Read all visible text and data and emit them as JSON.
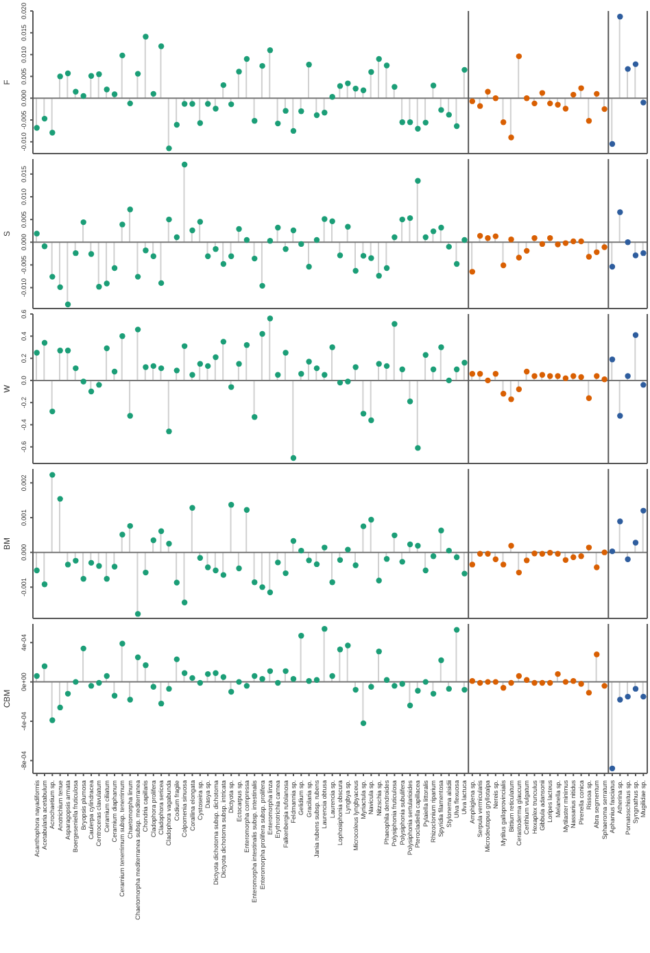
{
  "chart_data": [
    {
      "type": "lollipop",
      "ylabel": "F",
      "tick_labels": "y",
      "marker": "circle",
      "ylim": [
        -0.0127,
        0.02
      ],
      "yticks": [
        {
          "value": -0.01,
          "label": "-0.010"
        },
        {
          "value": -0.005,
          "label": "-0.005"
        },
        {
          "value": 0,
          "label": "0.000"
        },
        {
          "value": 0.005,
          "label": "0.005"
        },
        {
          "value": 0.01,
          "label": "0.010"
        },
        {
          "value": 0.015,
          "label": "0.015"
        },
        {
          "value": 0.02,
          "label": "0.020"
        }
      ],
      "series": [
        {
          "color": "#1b9e77",
          "values": [
            -0.0068,
            -0.0047,
            -0.0079,
            0.005,
            0.0057,
            0.0015,
            0.0005,
            0.0051,
            0.0055,
            0.002,
            0.0009,
            0.0098,
            -0.0012,
            0.0056,
            0.0141,
            0.001,
            0.0119,
            -0.0115,
            -0.0061,
            -0.0013,
            -0.0013,
            -0.0057,
            -0.0013,
            -0.0024,
            0.003,
            -0.0014,
            0.0061,
            0.009,
            -0.0052,
            0.0074,
            0.011,
            -0.0058,
            -0.0029,
            -0.0075,
            -0.003,
            0.0077,
            -0.0039,
            -0.0033,
            0.0003,
            0.0028,
            0.0034,
            0.0022,
            0.0018,
            0.006,
            0.009,
            0.0075,
            0.0026,
            -0.0055,
            -0.0055,
            -0.007,
            -0.0056,
            0.0029,
            -0.0027,
            -0.0038,
            -0.0064,
            0.0065,
            null,
            null,
            null,
            null,
            null,
            null,
            null,
            null,
            null,
            null,
            null,
            null,
            null,
            null,
            null,
            null,
            null,
            null,
            null,
            null,
            null,
            null,
            null
          ]
        },
        {
          "color": "#d95f02",
          "values": [
            null,
            null,
            null,
            null,
            null,
            null,
            null,
            null,
            null,
            null,
            null,
            null,
            null,
            null,
            null,
            null,
            null,
            null,
            null,
            null,
            null,
            null,
            null,
            null,
            null,
            null,
            null,
            null,
            null,
            null,
            null,
            null,
            null,
            null,
            null,
            null,
            null,
            null,
            null,
            null,
            null,
            null,
            null,
            null,
            null,
            null,
            null,
            null,
            null,
            null,
            null,
            null,
            null,
            null,
            null,
            null,
            -0.0007,
            -0.0018,
            0.0015,
            0,
            -0.0055,
            -0.009,
            0.0096,
            0,
            -0.0012,
            0.0012,
            -0.0012,
            -0.0015,
            -0.0024,
            0.0008,
            0.0023,
            -0.0052,
            0.001,
            -0.0025,
            null,
            null,
            null,
            null,
            null
          ]
        },
        {
          "color": "#2e5d9e",
          "values": [
            null,
            null,
            null,
            null,
            null,
            null,
            null,
            null,
            null,
            null,
            null,
            null,
            null,
            null,
            null,
            null,
            null,
            null,
            null,
            null,
            null,
            null,
            null,
            null,
            null,
            null,
            null,
            null,
            null,
            null,
            null,
            null,
            null,
            null,
            null,
            null,
            null,
            null,
            null,
            null,
            null,
            null,
            null,
            null,
            null,
            null,
            null,
            null,
            null,
            null,
            null,
            null,
            null,
            null,
            null,
            null,
            null,
            null,
            null,
            null,
            null,
            null,
            null,
            null,
            null,
            null,
            null,
            null,
            null,
            null,
            null,
            null,
            null,
            null,
            -0.0105,
            0.0187,
            0.0067,
            0.0078,
            -0.001
          ]
        }
      ]
    },
    {
      "type": "lollipop",
      "ylabel": "S",
      "tick_labels": "y",
      "marker": "circle",
      "ylim": [
        -0.0146,
        0.0183
      ],
      "yticks": [
        {
          "value": -0.01,
          "label": "-0.010"
        },
        {
          "value": -0.005,
          "label": "-0.005"
        },
        {
          "value": 0,
          "label": "0.000"
        },
        {
          "value": 0.005,
          "label": "0.005"
        },
        {
          "value": 0.01,
          "label": "0.010"
        },
        {
          "value": 0.015,
          "label": "0.015"
        }
      ],
      "series": [
        {
          "color": "#1b9e77",
          "values": [
            0.0019,
            -0.0009,
            -0.0076,
            -0.0099,
            -0.0137,
            -0.0024,
            0.0044,
            -0.0026,
            -0.0098,
            -0.0091,
            -0.0057,
            0.0039,
            0.0072,
            -0.0076,
            -0.0018,
            -0.0031,
            -0.009,
            0.005,
            0.0011,
            0.0171,
            0.0026,
            0.0045,
            -0.0031,
            -0.0015,
            -0.0048,
            -0.0031,
            0.0029,
            0.0005,
            -0.0036,
            -0.0096,
            0.0003,
            0.0032,
            -0.0015,
            0.0026,
            -0.0004,
            -0.0054,
            0.0005,
            0.0051,
            0.0046,
            -0.0029,
            0.0034,
            -0.0063,
            -0.003,
            -0.0035,
            -0.0074,
            -0.0057,
            0.0011,
            0.005,
            0.0053,
            0.0135,
            0.0011,
            0.0024,
            0.0032,
            -0.001,
            -0.0048,
            0.0005,
            null,
            null,
            null,
            null,
            null,
            null,
            null,
            null,
            null,
            null,
            null,
            null,
            null,
            null,
            null,
            null,
            null,
            null,
            null,
            null,
            null,
            null,
            null
          ]
        },
        {
          "color": "#d95f02",
          "values": [
            null,
            null,
            null,
            null,
            null,
            null,
            null,
            null,
            null,
            null,
            null,
            null,
            null,
            null,
            null,
            null,
            null,
            null,
            null,
            null,
            null,
            null,
            null,
            null,
            null,
            null,
            null,
            null,
            null,
            null,
            null,
            null,
            null,
            null,
            null,
            null,
            null,
            null,
            null,
            null,
            null,
            null,
            null,
            null,
            null,
            null,
            null,
            null,
            null,
            null,
            null,
            null,
            null,
            null,
            null,
            null,
            -0.0065,
            0.0014,
            0.0009,
            0.0013,
            -0.0051,
            0.0006,
            -0.0034,
            -0.0019,
            0.0009,
            -0.0004,
            0.0009,
            -0.0005,
            -0.0002,
            0.0002,
            0.0002,
            -0.0032,
            -0.0022,
            -0.0011,
            null,
            null,
            null,
            null,
            null
          ]
        },
        {
          "color": "#2e5d9e",
          "values": [
            null,
            null,
            null,
            null,
            null,
            null,
            null,
            null,
            null,
            null,
            null,
            null,
            null,
            null,
            null,
            null,
            null,
            null,
            null,
            null,
            null,
            null,
            null,
            null,
            null,
            null,
            null,
            null,
            null,
            null,
            null,
            null,
            null,
            null,
            null,
            null,
            null,
            null,
            null,
            null,
            null,
            null,
            null,
            null,
            null,
            null,
            null,
            null,
            null,
            null,
            null,
            null,
            null,
            null,
            null,
            null,
            null,
            null,
            null,
            null,
            null,
            null,
            null,
            null,
            null,
            null,
            null,
            null,
            null,
            null,
            null,
            null,
            null,
            null,
            -0.0054,
            0.0066,
            0,
            -0.0029,
            -0.0024
          ]
        }
      ]
    },
    {
      "type": "lollipop",
      "ylabel": "W",
      "tick_labels": "y",
      "marker": "circle",
      "ylim": [
        -0.75,
        0.6
      ],
      "yticks": [
        {
          "value": -0.6,
          "label": "-0.6"
        },
        {
          "value": -0.4,
          "label": "-0.4"
        },
        {
          "value": -0.2,
          "label": "-0.2"
        },
        {
          "value": 0,
          "label": "0.0"
        },
        {
          "value": 0.2,
          "label": "0.2"
        },
        {
          "value": 0.4,
          "label": "0.4"
        },
        {
          "value": 0.6,
          "label": "0.6"
        }
      ],
      "series": [
        {
          "color": "#1b9e77",
          "values": [
            0.25,
            0.34,
            -0.28,
            0.27,
            0.27,
            0.11,
            -0.01,
            -0.1,
            -0.04,
            0.29,
            0.08,
            0.4,
            -0.32,
            0.46,
            0.12,
            0.13,
            0.11,
            -0.46,
            0.09,
            0.31,
            0.05,
            0.15,
            0.13,
            0.21,
            0.35,
            -0.06,
            0.15,
            0.32,
            -0.33,
            0.42,
            0.56,
            0.05,
            0.25,
            -0.7,
            0.06,
            0.17,
            0.11,
            0.05,
            0.3,
            -0.02,
            -0.01,
            0.12,
            -0.3,
            -0.36,
            0.15,
            0.13,
            0.51,
            0.1,
            -0.19,
            -0.61,
            0.23,
            0.1,
            0.3,
            0,
            0.1,
            0.16,
            null,
            null,
            null,
            null,
            null,
            null,
            null,
            null,
            null,
            null,
            null,
            null,
            null,
            null,
            null,
            null,
            null,
            null,
            null,
            null,
            null,
            null,
            null
          ]
        },
        {
          "color": "#d95f02",
          "values": [
            null,
            null,
            null,
            null,
            null,
            null,
            null,
            null,
            null,
            null,
            null,
            null,
            null,
            null,
            null,
            null,
            null,
            null,
            null,
            null,
            null,
            null,
            null,
            null,
            null,
            null,
            null,
            null,
            null,
            null,
            null,
            null,
            null,
            null,
            null,
            null,
            null,
            null,
            null,
            null,
            null,
            null,
            null,
            null,
            null,
            null,
            null,
            null,
            null,
            null,
            null,
            null,
            null,
            null,
            null,
            null,
            0.06,
            0.06,
            0,
            0.06,
            -0.12,
            -0.17,
            -0.08,
            0.08,
            0.04,
            0.05,
            0.04,
            0.04,
            0.02,
            0.04,
            0.03,
            -0.16,
            0.04,
            0.01,
            null,
            null,
            null,
            null,
            null
          ]
        },
        {
          "color": "#2e5d9e",
          "values": [
            null,
            null,
            null,
            null,
            null,
            null,
            null,
            null,
            null,
            null,
            null,
            null,
            null,
            null,
            null,
            null,
            null,
            null,
            null,
            null,
            null,
            null,
            null,
            null,
            null,
            null,
            null,
            null,
            null,
            null,
            null,
            null,
            null,
            null,
            null,
            null,
            null,
            null,
            null,
            null,
            null,
            null,
            null,
            null,
            null,
            null,
            null,
            null,
            null,
            null,
            null,
            null,
            null,
            null,
            null,
            null,
            null,
            null,
            null,
            null,
            null,
            null,
            null,
            null,
            null,
            null,
            null,
            null,
            null,
            null,
            null,
            null,
            null,
            null,
            0.19,
            -0.32,
            0.04,
            0.41,
            -0.04
          ]
        }
      ]
    },
    {
      "type": "lollipop",
      "ylabel": "BM",
      "tick_labels": "y",
      "marker": "circle",
      "ylim": [
        -0.0019,
        0.0024
      ],
      "yticks": [
        {
          "value": -0.001,
          "label": "-0.001"
        },
        {
          "value": 0,
          "label": "0.000"
        },
        {
          "value": 0.001,
          "label": "0.001"
        },
        {
          "value": 0.002,
          "label": "0.002"
        }
      ],
      "series": [
        {
          "color": "#1b9e77",
          "values": [
            -0.00052,
            -0.00092,
            0.00223,
            0.00154,
            -0.00035,
            -0.00024,
            -0.00076,
            -0.0003,
            -0.00039,
            -0.00076,
            -0.00041,
            0.00051,
            0.00076,
            -0.00177,
            -0.00058,
            0.00035,
            0.00061,
            0.00025,
            -0.00087,
            -0.00144,
            0.00128,
            -0.00016,
            -0.00043,
            -0.00052,
            -0.00065,
            0.00137,
            -0.00046,
            0.00122,
            -0.00086,
            -0.001,
            -0.00115,
            -0.00029,
            -0.0006,
            0.00033,
            5e-05,
            -0.00023,
            -0.00034,
            0.00014,
            -0.00086,
            -0.00022,
            8e-05,
            -0.00037,
            0.00075,
            0.00094,
            -0.00081,
            -0.00019,
            0.00049,
            -0.00027,
            0.00023,
            0.00019,
            -0.00052,
            -0.00011,
            0.00063,
            5e-05,
            -0.00014,
            -0.00061,
            null,
            null,
            null,
            null,
            null,
            null,
            null,
            null,
            null,
            null,
            null,
            null,
            null,
            null,
            null,
            null,
            null,
            null,
            null,
            null,
            null,
            null,
            null
          ]
        },
        {
          "color": "#d95f02",
          "values": [
            null,
            null,
            null,
            null,
            null,
            null,
            null,
            null,
            null,
            null,
            null,
            null,
            null,
            null,
            null,
            null,
            null,
            null,
            null,
            null,
            null,
            null,
            null,
            null,
            null,
            null,
            null,
            null,
            null,
            null,
            null,
            null,
            null,
            null,
            null,
            null,
            null,
            null,
            null,
            null,
            null,
            null,
            null,
            null,
            null,
            null,
            null,
            null,
            null,
            null,
            null,
            null,
            null,
            null,
            null,
            null,
            -0.00035,
            -4e-05,
            -4e-05,
            -0.0002,
            -0.00035,
            0.00019,
            -0.00058,
            -0.00023,
            -3e-05,
            -4e-05,
            -1e-05,
            -4e-05,
            -0.00022,
            -0.00014,
            -0.00011,
            0.00014,
            -0.00043,
            0,
            null,
            null,
            null,
            null,
            null
          ]
        },
        {
          "color": "#2e5d9e",
          "values": [
            null,
            null,
            null,
            null,
            null,
            null,
            null,
            null,
            null,
            null,
            null,
            null,
            null,
            null,
            null,
            null,
            null,
            null,
            null,
            null,
            null,
            null,
            null,
            null,
            null,
            null,
            null,
            null,
            null,
            null,
            null,
            null,
            null,
            null,
            null,
            null,
            null,
            null,
            null,
            null,
            null,
            null,
            null,
            null,
            null,
            null,
            null,
            null,
            null,
            null,
            null,
            null,
            null,
            null,
            null,
            null,
            null,
            null,
            null,
            null,
            null,
            null,
            null,
            null,
            null,
            null,
            null,
            null,
            null,
            null,
            null,
            null,
            null,
            null,
            3e-05,
            0.00089,
            -0.0002,
            0.00028,
            0.0012
          ]
        }
      ]
    },
    {
      "type": "lollipop",
      "ylabel": "CBM",
      "marker": "circle",
      "ylim": [
        -0.00093,
        0.00059
      ],
      "yticks": [
        {
          "value": -0.0008,
          "label": "-8e-04"
        },
        {
          "value": -0.0004,
          "label": "-4e-04"
        },
        {
          "value": 0,
          "label": "0e+00"
        },
        {
          "value": 0.0004,
          "label": "4e-04"
        }
      ],
      "categories": [
        "Acanthophora nayadiformis",
        "Acetabularia acetabulum",
        "Acrochaetium sp.",
        "Anotrichium tenue",
        "Asparagopsis armata",
        "Boergeseniella fruticulosa",
        "Bryopsis plumosa",
        "Caulerpa cylindracea",
        "Centroceras clavulatum",
        "Ceramium ciliatum",
        "Ceramium diaphanum",
        "Ceramium tenerrimum subsp. tenerrimum",
        "Chaetomorpha linum",
        "Chaetomorpha mediterranea subsp. mediterranea",
        "Chondria capillaris",
        "Cladophora prolifera",
        "Cladophora sericea",
        "Cladophora vagabunda",
        "Codium fragile",
        "Colpomenia sinuosa",
        "Corallina elongata",
        "Cystoseira sp.",
        "Dasya sp.",
        "Dictyota dichotoma subsp. dichotoma",
        "Dictyota dichotoma subsp. intricata",
        "Dictyota sp.",
        "Ectocarpus sp.",
        "Enteromorpha compressa",
        "Enteromorpha intestinalis subsp. intestinalis",
        "Enteromorpha prolifera subsp. prolifera",
        "Enteromorpha linza",
        "Erythrotrichia carnea",
        "Falkenbergia rufolanosa",
        "Feldmannia sp.",
        "Gelidium sp.",
        "Gracilaria sp.",
        "Jania rubens subsp. rubens",
        "Laurencia obtusa",
        "Laurencia sp.",
        "Lophosiphonia obscura",
        "Lyngbya sp.",
        "Microcoleus lyngbyaceus",
        "Myriactula sp.",
        "Navicula sp.",
        "Nitzschia sp.",
        "Phaeophila dendroides",
        "Polysiphonia fruticulosa",
        "Polysiphonia subulifera",
        "Polysiphonia sertularioides",
        "Pterocladiella capillacea",
        "Pylaiella littoralis",
        "Rhizoclonium riparium",
        "Spyridia filamentosa",
        "Stylonema alsidii",
        "Ulva flexuosa",
        "Ulva lactuca",
        "Amphiglena sp.",
        "Serpula vermicularis",
        "Microdeutopus gryllotalpa",
        "Nereis sp.",
        "Mytilus galloprovincialis",
        "Bittium reticulatum",
        "Cerastoderma glaucum",
        "Cerithium vulgatum",
        "Hexaplex trunculus",
        "Gibbula adansonii",
        "Loripes lacteus",
        "Melanella sp.",
        "Mytilaster minimus",
        "Nassarius nitidus",
        "Pirenella conica",
        "Rissoa sp.",
        "Abra segmentum",
        "Sphaeroma serratum",
        "Aphanius fasciatus",
        "Atherina sp.",
        "Pomatoschistus sp.",
        "Syngnathus sp.",
        "Mugilidae sp."
      ],
      "series": [
        {
          "color": "#1b9e77",
          "values": [
            6e-05,
            0.00016,
            -0.00039,
            -0.00026,
            -0.00012,
            0,
            0.00034,
            -4e-05,
            -1e-05,
            6e-05,
            -0.00014,
            0.00039,
            -0.00018,
            0.00025,
            0.00017,
            -5e-05,
            -0.00022,
            -7e-05,
            0.00023,
            9e-05,
            4e-05,
            -1e-05,
            8e-05,
            9e-05,
            5e-05,
            -0.0001,
            0,
            -4e-05,
            6e-05,
            3e-05,
            0.00011,
            -1e-05,
            0.00011,
            3e-05,
            0.00047,
            1e-05,
            2e-05,
            0.00054,
            6e-05,
            0.00033,
            0.00037,
            -8e-05,
            -0.00042,
            -5e-05,
            0.00031,
            2e-05,
            -4e-05,
            -2e-05,
            -0.00024,
            -9e-05,
            0,
            -0.00012,
            0.00022,
            -7e-05,
            0.00053,
            -8e-05,
            null,
            null,
            null,
            null,
            null,
            null,
            null,
            null,
            null,
            null,
            null,
            null,
            null,
            null,
            null,
            null,
            null,
            null,
            null,
            null,
            null,
            null,
            null
          ]
        },
        {
          "color": "#d95f02",
          "values": [
            null,
            null,
            null,
            null,
            null,
            null,
            null,
            null,
            null,
            null,
            null,
            null,
            null,
            null,
            null,
            null,
            null,
            null,
            null,
            null,
            null,
            null,
            null,
            null,
            null,
            null,
            null,
            null,
            null,
            null,
            null,
            null,
            null,
            null,
            null,
            null,
            null,
            null,
            null,
            null,
            null,
            null,
            null,
            null,
            null,
            null,
            null,
            null,
            null,
            null,
            null,
            null,
            null,
            null,
            null,
            null,
            1e-05,
            -1e-05,
            0,
            0,
            -6e-05,
            -1e-05,
            6e-05,
            2e-05,
            -1e-05,
            -1e-05,
            -1e-05,
            8e-05,
            0,
            1e-05,
            -2e-05,
            -0.00011,
            0.00028,
            -4e-05,
            null,
            null,
            null,
            null,
            null
          ]
        },
        {
          "color": "#2e5d9e",
          "values": [
            null,
            null,
            null,
            null,
            null,
            null,
            null,
            null,
            null,
            null,
            null,
            null,
            null,
            null,
            null,
            null,
            null,
            null,
            null,
            null,
            null,
            null,
            null,
            null,
            null,
            null,
            null,
            null,
            null,
            null,
            null,
            null,
            null,
            null,
            null,
            null,
            null,
            null,
            null,
            null,
            null,
            null,
            null,
            null,
            null,
            null,
            null,
            null,
            null,
            null,
            null,
            null,
            null,
            null,
            null,
            null,
            null,
            null,
            null,
            null,
            null,
            null,
            null,
            null,
            null,
            null,
            null,
            null,
            null,
            null,
            null,
            null,
            null,
            null,
            -0.00088,
            -0.00018,
            -0.00015,
            -7e-05,
            -0.00015
          ]
        }
      ]
    }
  ]
}
